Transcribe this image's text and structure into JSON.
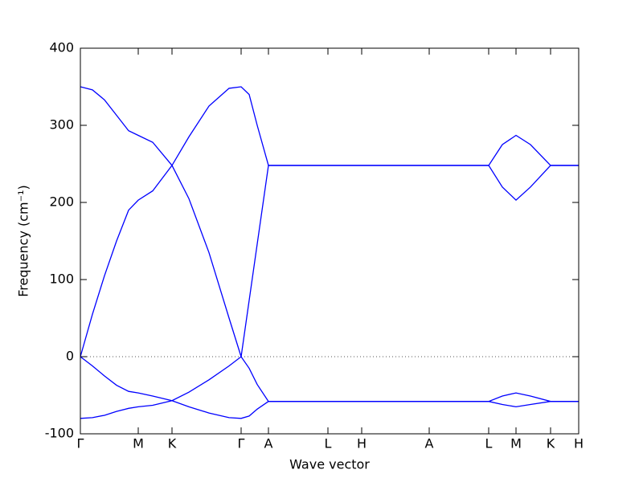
{
  "chart_data": {
    "type": "line",
    "xlabel": "Wave vector",
    "ylabel": "Frequency (cm⁻¹)",
    "x": [
      0,
      15,
      30,
      45,
      60,
      72,
      90,
      114,
      135,
      160,
      185,
      200,
      210,
      220,
      234,
      308,
      508,
      525,
      542,
      560,
      585,
      620
    ],
    "series": [
      {
        "color": "#0000ff",
        "values": [
          350,
          346,
          333,
          313,
          293,
          287,
          278,
          248,
          205,
          135,
          50,
          0,
          73,
          146,
          248,
          248,
          248,
          275,
          287,
          275,
          248,
          248
        ]
      },
      {
        "color": "#0000ff",
        "values": [
          0,
          55,
          105,
          150,
          190,
          203,
          215,
          248,
          285,
          325,
          348,
          350,
          340,
          300,
          248,
          248,
          248,
          220,
          203,
          220,
          248,
          248
        ]
      },
      {
        "color": "#0000ff",
        "values": [
          0,
          -12,
          -25,
          -37,
          -45,
          -47,
          -51,
          -57,
          -65,
          -73,
          -79,
          -80,
          -77,
          -68,
          -58,
          -58,
          -58,
          -51,
          -47,
          -51,
          -58,
          -58
        ]
      },
      {
        "color": "#0000ff",
        "values": [
          -80,
          -79,
          -76,
          -71,
          -67,
          -65,
          -63,
          -57,
          -46,
          -30,
          -12,
          0,
          -15,
          -36,
          -58,
          -58,
          -58,
          -62,
          -65,
          -62,
          -58,
          -58
        ]
      }
    ],
    "xlim": [
      0,
      620
    ],
    "xticks": [
      {
        "value": 0,
        "label": "Γ"
      },
      {
        "value": 72,
        "label": "M"
      },
      {
        "value": 114,
        "label": "K"
      },
      {
        "value": 200,
        "label": "Γ"
      },
      {
        "value": 234,
        "label": "A"
      },
      {
        "value": 308,
        "label": "L"
      },
      {
        "value": 350,
        "label": "H"
      },
      {
        "value": 434,
        "label": "A"
      },
      {
        "value": 508,
        "label": "L"
      },
      {
        "value": 542,
        "label": "M"
      },
      {
        "value": 585,
        "label": "K"
      },
      {
        "value": 620,
        "label": "H"
      }
    ],
    "ylim": [
      -100,
      400
    ],
    "yticks": [
      -100,
      0,
      100,
      200,
      300,
      400
    ],
    "hline": 0
  }
}
